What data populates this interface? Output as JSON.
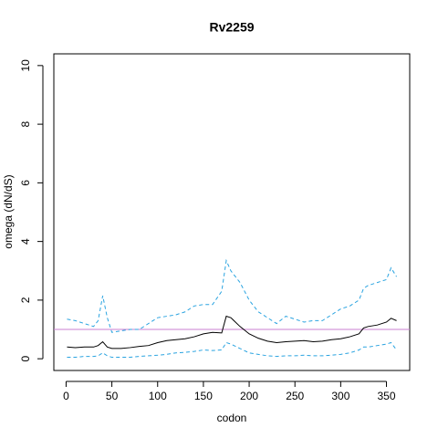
{
  "chart_data": {
    "type": "line",
    "title": "Rv2259",
    "xlabel": "codon",
    "ylabel": "omega (dN/dS)",
    "x": [
      1,
      10,
      20,
      30,
      35,
      40,
      45,
      50,
      60,
      70,
      80,
      90,
      100,
      110,
      120,
      130,
      140,
      150,
      160,
      170,
      175,
      180,
      190,
      200,
      210,
      220,
      230,
      240,
      250,
      260,
      270,
      280,
      290,
      300,
      310,
      320,
      325,
      330,
      340,
      350,
      355,
      361
    ],
    "series": [
      {
        "color": "#29a3e0",
        "dash": true,
        "values": [
          1.35,
          1.3,
          1.2,
          1.1,
          1.3,
          2.15,
          1.4,
          0.9,
          0.95,
          1.0,
          1.0,
          1.2,
          1.4,
          1.45,
          1.5,
          1.6,
          1.8,
          1.85,
          1.85,
          2.3,
          3.35,
          3.0,
          2.6,
          2.0,
          1.6,
          1.4,
          1.2,
          1.45,
          1.35,
          1.25,
          1.3,
          1.3,
          1.5,
          1.7,
          1.8,
          2.0,
          2.4,
          2.5,
          2.6,
          2.7,
          3.1,
          2.8
        ]
      },
      {
        "color": "#000000",
        "dash": false,
        "values": [
          0.4,
          0.38,
          0.4,
          0.4,
          0.45,
          0.58,
          0.4,
          0.35,
          0.35,
          0.38,
          0.42,
          0.45,
          0.55,
          0.62,
          0.65,
          0.68,
          0.75,
          0.85,
          0.9,
          0.88,
          1.45,
          1.4,
          1.1,
          0.85,
          0.7,
          0.6,
          0.55,
          0.58,
          0.6,
          0.62,
          0.58,
          0.6,
          0.65,
          0.68,
          0.75,
          0.85,
          1.05,
          1.1,
          1.15,
          1.25,
          1.38,
          1.3
        ]
      },
      {
        "color": "#29a3e0",
        "dash": true,
        "values": [
          0.05,
          0.05,
          0.08,
          0.08,
          0.1,
          0.2,
          0.1,
          0.05,
          0.05,
          0.05,
          0.08,
          0.1,
          0.12,
          0.15,
          0.2,
          0.22,
          0.25,
          0.3,
          0.28,
          0.3,
          0.55,
          0.5,
          0.35,
          0.2,
          0.15,
          0.1,
          0.08,
          0.1,
          0.1,
          0.12,
          0.1,
          0.1,
          0.12,
          0.15,
          0.2,
          0.3,
          0.4,
          0.4,
          0.45,
          0.5,
          0.55,
          0.3
        ]
      }
    ],
    "hline": {
      "value": 1,
      "color": "#c97fd0"
    },
    "xlim": [
      -13.4,
      375.4
    ],
    "ylim": [
      -0.4,
      10.4
    ],
    "xticks": [
      0,
      50,
      100,
      150,
      200,
      250,
      300,
      350
    ],
    "yticks": [
      0,
      2,
      4,
      6,
      8,
      10
    ]
  }
}
